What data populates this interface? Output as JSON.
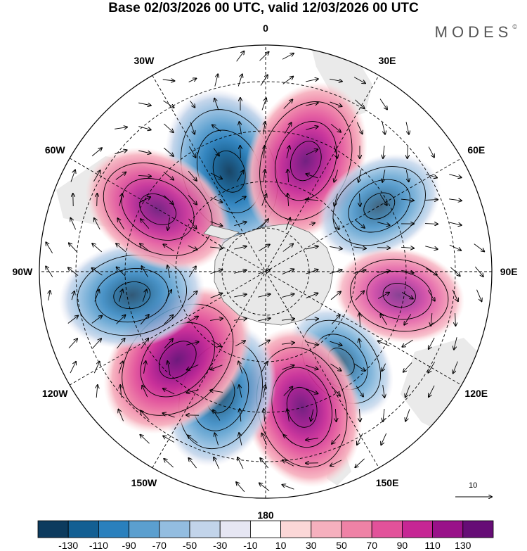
{
  "title": "Base 02/03/2026 00 UTC, valid 12/03/2026 00 UTC",
  "brand": {
    "name": "MODES",
    "mark": "©"
  },
  "map": {
    "projection": "south-polar-stereographic",
    "longitude_labels": [
      {
        "lon": 0,
        "text": "0"
      },
      {
        "lon": 30,
        "text": "30E"
      },
      {
        "lon": 60,
        "text": "60E"
      },
      {
        "lon": 90,
        "text": "90E"
      },
      {
        "lon": 120,
        "text": "120E"
      },
      {
        "lon": 150,
        "text": "150E"
      },
      {
        "lon": 180,
        "text": "180"
      },
      {
        "lon": 210,
        "text": "150W"
      },
      {
        "lon": 240,
        "text": "120W"
      },
      {
        "lon": 270,
        "text": "90W"
      },
      {
        "lon": 300,
        "text": "60W"
      },
      {
        "lon": 330,
        "text": "30W"
      }
    ],
    "anomalies": [
      {
        "lon": -20,
        "colat": 0.47,
        "value": -120
      },
      {
        "lon": 20,
        "colat": 0.52,
        "value": 110
      },
      {
        "lon": 60,
        "colat": 0.58,
        "value": -70
      },
      {
        "lon": 100,
        "colat": 0.6,
        "value": 70
      },
      {
        "lon": 140,
        "colat": 0.52,
        "value": -60
      },
      {
        "lon": 165,
        "colat": 0.62,
        "value": 110
      },
      {
        "lon": 200,
        "colat": 0.58,
        "value": -90
      },
      {
        "lon": 225,
        "colat": 0.55,
        "value": 120
      },
      {
        "lon": 260,
        "colat": 0.6,
        "value": -90
      },
      {
        "lon": 300,
        "colat": 0.55,
        "value": 100
      }
    ],
    "vector_scale": {
      "value": "10"
    }
  },
  "colorbar": {
    "colors": [
      "#0d3b5e",
      "#135f93",
      "#2a80bd",
      "#5b9fcf",
      "#93bde0",
      "#c2d4ea",
      "#e6e6f3",
      "#ffffff",
      "#fbd7d7",
      "#f6b0be",
      "#ef82a6",
      "#e2529a",
      "#c62694",
      "#991189",
      "#660d76"
    ],
    "labels": [
      "-130",
      "-110",
      "-90",
      "-70",
      "-50",
      "-30",
      "-10",
      "10",
      "30",
      "50",
      "70",
      "90",
      "110",
      "130"
    ]
  }
}
